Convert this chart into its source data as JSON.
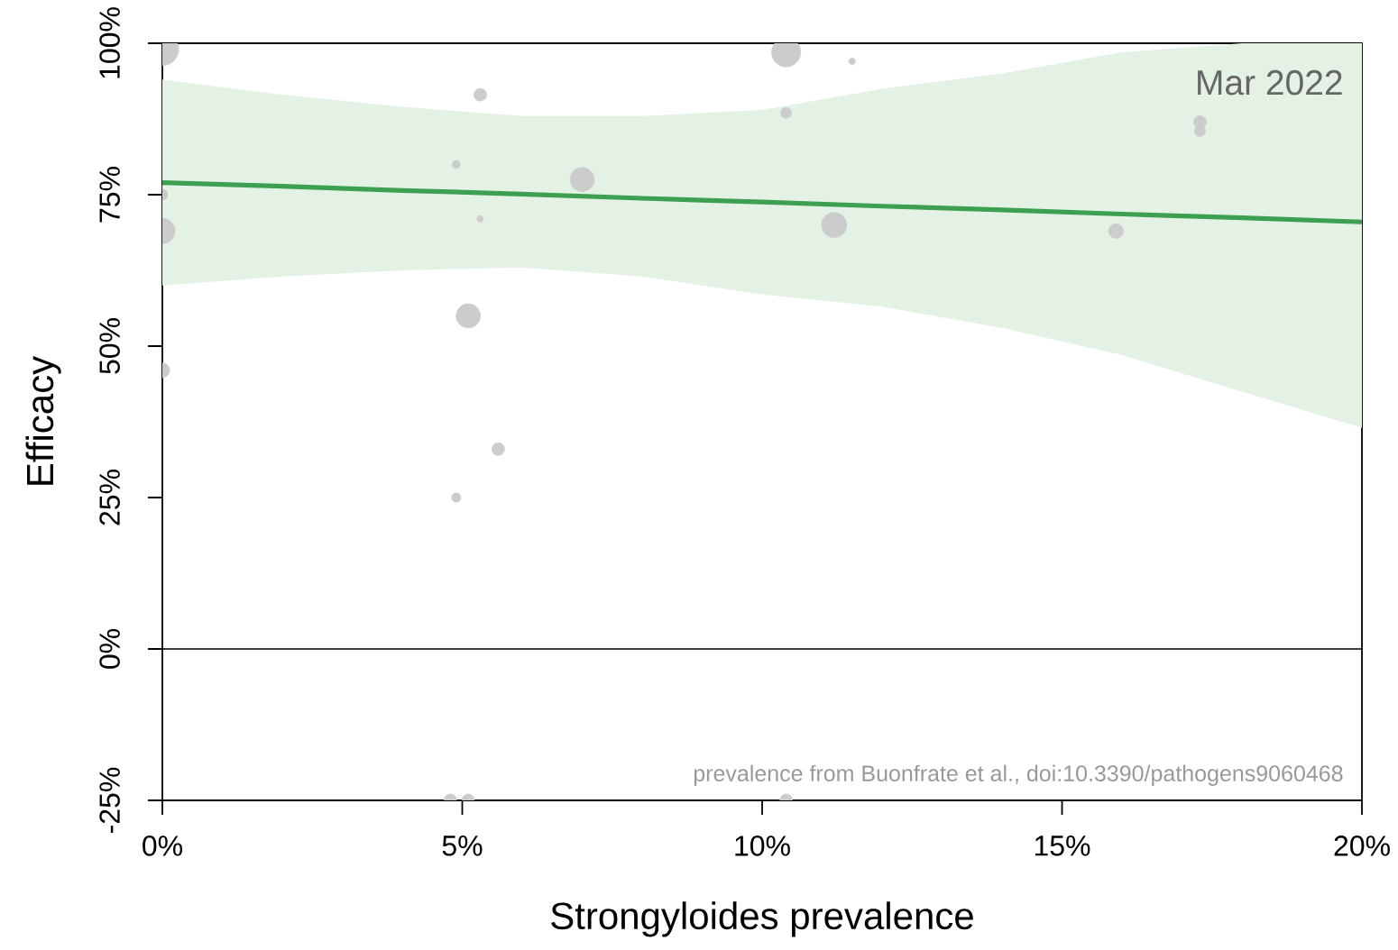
{
  "chart_data": {
    "type": "bubble",
    "xlabel": "Strongyloides prevalence",
    "ylabel": "Efficacy",
    "annotations": [
      "Mar 2022",
      "prevalence from Buonfrate et al., doi:10.3390/pathogens9060468"
    ],
    "series": [
      {
        "color": "#cccccc",
        "marker": "circle",
        "x": [
          0,
          0,
          0,
          0,
          5.3,
          4.9,
          5.3,
          7.0,
          5.1,
          5.6,
          4.9,
          4.8,
          5.1,
          10.4,
          11.5,
          10.4,
          17.3,
          17.3,
          11.2,
          15.9,
          10.4
        ],
        "values": [
          99,
          75,
          69,
          46,
          91.5,
          80,
          71,
          77.5,
          55,
          33,
          25,
          -25,
          -25,
          98.5,
          97,
          88.5,
          87,
          85.5,
          70,
          69,
          -25
        ],
        "sizes": [
          1,
          0.11,
          0.6,
          0.2,
          0.15,
          0.06,
          0.04,
          0.55,
          0.55,
          0.15,
          0.08,
          0.15,
          0.15,
          0.8,
          0.04,
          0.11,
          0.15,
          0.11,
          0.6,
          0.2,
          0.15
        ]
      },
      {
        "type": "line",
        "color": "#3d9f50",
        "line_style": "solid",
        "x": [
          0,
          2,
          4,
          6,
          8,
          10,
          12,
          14,
          16,
          18,
          20
        ],
        "values": [
          77,
          76.4,
          75.7,
          75.1,
          74.4,
          73.8,
          73.1,
          72.5,
          71.8,
          71.2,
          70.5
        ],
        "lower": [
          60,
          61.5,
          62.5,
          63,
          61.5,
          58.5,
          56.5,
          53,
          48.5,
          42.5,
          36.5
        ],
        "upper": [
          94,
          91.5,
          89.5,
          88,
          88,
          89,
          92.5,
          95,
          98.5,
          100,
          100
        ]
      }
    ],
    "xlim": [
      0,
      20
    ],
    "xticks": [
      {
        "value": 0,
        "label": "0%"
      },
      {
        "value": 5,
        "label": "5%"
      },
      {
        "value": 10,
        "label": "10%"
      },
      {
        "value": 15,
        "label": "15%"
      },
      {
        "value": 20,
        "label": "20%"
      }
    ],
    "ylim": [
      -25,
      100
    ],
    "yticks": [
      {
        "value": -25,
        "label": "-25%"
      },
      {
        "value": 0,
        "label": "0%"
      },
      {
        "value": 25,
        "label": "25%"
      },
      {
        "value": 50,
        "label": "50%"
      },
      {
        "value": 75,
        "label": "75%"
      },
      {
        "value": 100,
        "label": "100%"
      }
    ],
    "ref_lines": [
      {
        "axis": "y",
        "value": 0
      }
    ]
  }
}
